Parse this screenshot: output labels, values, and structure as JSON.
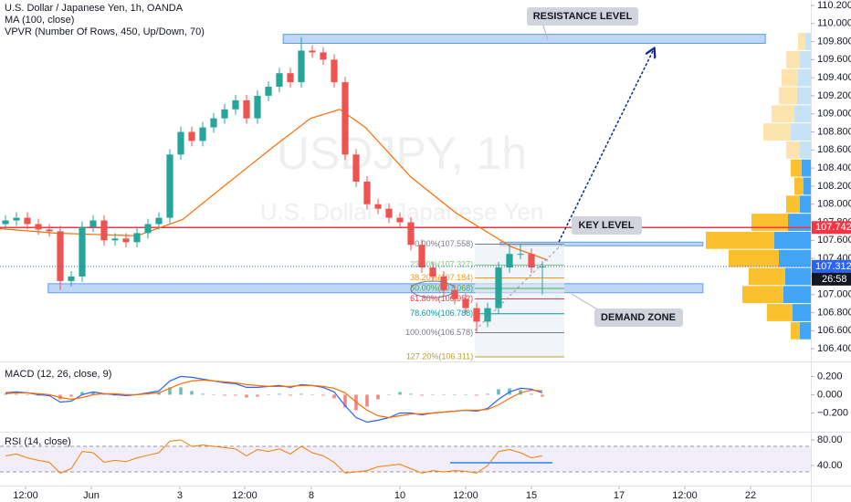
{
  "chart_data": [
    {
      "type": "candlestick",
      "title": "U.S. Dollar / Japanese Yen, 1h, OANDA",
      "watermark": {
        "symbol": "USDJPY, 1h",
        "description": "U.S. Dollar / Japanese Yen"
      },
      "annotations": [
        "RESISTANCE LEVEL",
        "KEY LEVEL",
        "DEMAND ZONE"
      ],
      "up_color": "#26a69a",
      "down_color": "#ef5350",
      "x": [
        1,
        3,
        5,
        7,
        9,
        11,
        13,
        15,
        17,
        19,
        21,
        23,
        25,
        27,
        29,
        31,
        33,
        35,
        37,
        39,
        41,
        43,
        45,
        47,
        49,
        51,
        53,
        55,
        57,
        59,
        61,
        63,
        65,
        67,
        69,
        71,
        73,
        75,
        77,
        79,
        81,
        83,
        85,
        87,
        89,
        91,
        93,
        95,
        97,
        99
      ],
      "open": [
        107.78,
        107.82,
        107.85,
        107.78,
        107.72,
        107.7,
        107.15,
        107.2,
        107.75,
        107.82,
        107.6,
        107.62,
        107.58,
        107.68,
        107.78,
        107.85,
        108.55,
        108.8,
        108.7,
        108.85,
        108.95,
        109.05,
        109.15,
        108.95,
        109.2,
        109.3,
        109.45,
        109.35,
        109.7,
        109.68,
        109.6,
        109.35,
        108.55,
        108.25,
        108.0,
        107.95,
        107.85,
        107.8,
        107.55,
        107.3,
        107.2,
        107.05,
        106.95,
        106.85,
        106.7,
        106.85,
        107.3,
        107.45,
        107.45,
        107.3
      ],
      "high": [
        107.88,
        107.91,
        107.91,
        107.84,
        107.78,
        107.76,
        107.26,
        107.81,
        107.88,
        107.88,
        107.68,
        107.68,
        107.74,
        107.84,
        107.91,
        108.61,
        108.86,
        108.86,
        108.91,
        109.01,
        109.11,
        109.21,
        109.21,
        109.26,
        109.36,
        109.51,
        109.51,
        109.85,
        109.76,
        109.74,
        109.66,
        109.41,
        108.61,
        108.31,
        108.06,
        108.01,
        107.91,
        107.86,
        107.61,
        107.36,
        107.26,
        107.11,
        107.01,
        106.91,
        106.91,
        107.36,
        107.55,
        107.56,
        107.51,
        107.37
      ],
      "low": [
        107.72,
        107.76,
        107.72,
        107.66,
        107.64,
        107.05,
        107.09,
        107.14,
        107.69,
        107.54,
        107.54,
        107.52,
        107.52,
        107.62,
        107.72,
        107.79,
        108.49,
        108.64,
        108.64,
        108.79,
        108.89,
        108.99,
        108.89,
        108.89,
        109.14,
        109.24,
        109.29,
        109.29,
        109.62,
        109.54,
        109.29,
        108.49,
        108.19,
        107.94,
        107.89,
        107.79,
        107.74,
        107.49,
        107.24,
        107.14,
        106.99,
        106.89,
        106.79,
        106.58,
        106.64,
        106.79,
        107.24,
        107.39,
        107.24,
        107.0
      ],
      "close": [
        107.82,
        107.85,
        107.78,
        107.72,
        107.7,
        107.15,
        107.2,
        107.75,
        107.82,
        107.6,
        107.62,
        107.58,
        107.68,
        107.78,
        107.85,
        108.55,
        108.8,
        108.7,
        108.85,
        108.95,
        109.05,
        109.15,
        108.95,
        109.2,
        109.3,
        109.45,
        109.35,
        109.7,
        109.68,
        109.6,
        109.35,
        108.55,
        108.25,
        108.0,
        107.95,
        107.85,
        107.8,
        107.55,
        107.3,
        107.2,
        107.05,
        106.95,
        106.85,
        106.7,
        106.85,
        107.3,
        107.45,
        107.45,
        107.3,
        107.31
      ],
      "xlim": [
        0,
        148
      ],
      "xticks": [
        {
          "value": 4.67,
          "label": "12:00"
        },
        {
          "value": 16.67,
          "label": "Jun"
        },
        {
          "value": 32.83,
          "label": "3"
        },
        {
          "value": 44.67,
          "label": "12:00"
        },
        {
          "value": 56.83,
          "label": "8"
        },
        {
          "value": 73,
          "label": "10"
        },
        {
          "value": 85,
          "label": "12:00"
        },
        {
          "value": 97,
          "label": "15"
        },
        {
          "value": 113,
          "label": "17"
        },
        {
          "value": 125,
          "label": "12:00"
        },
        {
          "value": 137,
          "label": "22"
        }
      ],
      "ylim": [
        106.27,
        110.26
      ],
      "yticks": [
        {
          "value": 106.4,
          "label": "106.400"
        },
        {
          "value": 106.6,
          "label": "106.600"
        },
        {
          "value": 106.8,
          "label": "106.800"
        },
        {
          "value": 107.0,
          "label": "107.000"
        },
        {
          "value": 107.2,
          "label": "107.200"
        },
        {
          "value": 107.4,
          "label": "107.400"
        },
        {
          "value": 107.6,
          "label": "107.600"
        },
        {
          "value": 107.8,
          "label": "107.800"
        },
        {
          "value": 108.0,
          "label": "108.000"
        },
        {
          "value": 108.2,
          "label": "108.200"
        },
        {
          "value": 108.4,
          "label": "108.400"
        },
        {
          "value": 108.6,
          "label": "108.600"
        },
        {
          "value": 108.8,
          "label": "108.800"
        },
        {
          "value": 109.0,
          "label": "109.000"
        },
        {
          "value": 109.2,
          "label": "109.200"
        },
        {
          "value": 109.4,
          "label": "109.400"
        },
        {
          "value": 109.6,
          "label": "109.600"
        },
        {
          "value": 109.8,
          "label": "109.800"
        },
        {
          "value": 110.0,
          "label": "110.000"
        },
        {
          "value": 110.2,
          "label": "110.200"
        }
      ],
      "ma": {
        "name": "MA (100, close)",
        "color": "#ff6d00",
        "x": [
          0,
          10,
          25,
          33.3,
          41.7,
          50,
          56.7,
          62,
          66.7,
          75,
          83.3,
          93.3,
          100
        ],
        "values": [
          107.73,
          107.68,
          107.65,
          107.83,
          108.24,
          108.64,
          108.95,
          109.05,
          108.85,
          108.3,
          107.9,
          107.53,
          107.38
        ]
      },
      "volume_profile": {
        "name": "VPVR (Number Of Rows, 450, Up/Down, 70)",
        "bins": [
          106.5,
          106.7,
          106.9,
          107.1,
          107.3,
          107.5,
          107.7,
          107.9,
          108.1,
          108.3,
          108.5,
          108.7,
          108.9,
          109.1,
          109.3,
          109.5,
          109.7,
          109.9
        ],
        "up": [
          12,
          20,
          30,
          28,
          35,
          40,
          25,
          12,
          8,
          10,
          12,
          22,
          18,
          15,
          14,
          12,
          6
        ],
        "down": [
          10,
          28,
          45,
          40,
          55,
          75,
          40,
          15,
          10,
          12,
          15,
          30,
          25,
          20,
          18,
          15,
          8
        ],
        "xlim": [
          0,
          120
        ],
        "value_area": [
          106.5,
          108.5
        ],
        "up_color": "#42a5f5",
        "down_color": "#fbc02d",
        "up_color_outside": "#c6e2f7",
        "down_color_outside": "#fde4ad"
      },
      "zones": [
        {
          "y": [
            109.78,
            109.88
          ],
          "x": [
            51.7,
            139.7
          ],
          "color": "#a9c8f3"
        },
        {
          "y": [
            107.02,
            107.12
          ],
          "x": [
            8.8,
            128.3
          ],
          "color": "#a9c8f3"
        },
        {
          "y": [
            107.54,
            107.58
          ],
          "x": [
            91.3,
            128.3
          ],
          "color": "#a9c8f3"
        }
      ],
      "key_level": {
        "value": 107.742,
        "color": "#f23645"
      },
      "fibonacci": {
        "x": [
          86.7,
          103
        ],
        "levels": [
          {
            "value": 107.558,
            "label": "0.00%(107.558)",
            "color": "#787b86"
          },
          {
            "value": 107.327,
            "label": "23.60%(107.327)",
            "color": "#81c784"
          },
          {
            "value": 107.184,
            "label": "38.20%(107.184)",
            "color": "#ff9800"
          },
          {
            "value": 107.068,
            "label": "50.00%(107.068)",
            "color": "#4caf50"
          },
          {
            "value": 106.952,
            "label": "61.80%(106.952)",
            "color": "#f23645"
          },
          {
            "value": 106.788,
            "label": "78.60%(106.788)",
            "color": "#0097a7"
          },
          {
            "value": 106.578,
            "label": "100.00%(106.578)",
            "color": "#787b86"
          },
          {
            "value": 106.311,
            "label": "127.20%(106.311)",
            "color": "#b8a02c"
          }
        ]
      },
      "price_tags": [
        {
          "value": 107.742,
          "label": "107.742",
          "color": "#f23645"
        },
        {
          "value": 107.312,
          "label": "107.312",
          "color": "#2962ff",
          "line": "dotted"
        }
      ],
      "countdown": {
        "label": "26:58",
        "color": "#131722"
      }
    },
    {
      "type": "macd",
      "title": "MACD (12, 26, close, 9)",
      "macd": {
        "color": "#2962ff",
        "values": [
          0.02,
          0.03,
          0.02,
          0.0,
          -0.01,
          -0.08,
          -0.07,
          0.0,
          0.03,
          0.01,
          0.0,
          -0.01,
          0.0,
          0.02,
          0.04,
          0.15,
          0.2,
          0.19,
          0.17,
          0.15,
          0.13,
          0.12,
          0.08,
          0.08,
          0.09,
          0.1,
          0.08,
          0.11,
          0.1,
          0.08,
          0.03,
          -0.12,
          -0.25,
          -0.3,
          -0.28,
          -0.25,
          -0.2,
          -0.2,
          -0.22,
          -0.2,
          -0.19,
          -0.18,
          -0.17,
          -0.18,
          -0.15,
          -0.05,
          0.03,
          0.07,
          0.06,
          0.02
        ]
      },
      "signal": {
        "color": "#ff6d00",
        "values": [
          0.01,
          0.02,
          0.02,
          0.01,
          0.0,
          -0.03,
          -0.05,
          -0.03,
          0.0,
          0.01,
          0.01,
          0.0,
          0.0,
          0.01,
          0.02,
          0.07,
          0.12,
          0.15,
          0.16,
          0.15,
          0.14,
          0.13,
          0.11,
          0.1,
          0.09,
          0.09,
          0.09,
          0.1,
          0.1,
          0.09,
          0.07,
          0.02,
          -0.08,
          -0.17,
          -0.23,
          -0.25,
          -0.23,
          -0.21,
          -0.21,
          -0.2,
          -0.19,
          -0.18,
          -0.17,
          -0.17,
          -0.16,
          -0.11,
          -0.04,
          0.02,
          0.05,
          0.04
        ]
      },
      "histogram": {
        "up_color": "#26a69a",
        "down_color": "#ef5350",
        "values": [
          0.01,
          0.01,
          0,
          -0.01,
          -0.01,
          -0.05,
          -0.02,
          0.03,
          0.03,
          0,
          -0.01,
          -0.01,
          0,
          0.01,
          0.02,
          0.08,
          0.08,
          0.04,
          0.01,
          0,
          -0.01,
          -0.01,
          -0.03,
          -0.02,
          0,
          0.01,
          -0.01,
          0.01,
          0,
          -0.01,
          -0.04,
          -0.14,
          -0.17,
          -0.13,
          -0.05,
          0,
          0.03,
          0.01,
          -0.01,
          0,
          0,
          0,
          0,
          -0.01,
          0.01,
          0.06,
          0.07,
          0.05,
          0.01,
          -0.02
        ]
      },
      "ylim": [
        -0.395,
        0.344
      ],
      "yticks": [
        {
          "value": -0.2,
          "label": "−0.200"
        },
        {
          "value": 0,
          "label": "0.000"
        },
        {
          "value": 0.2,
          "label": "0.200"
        }
      ]
    },
    {
      "type": "line",
      "title": "RSI (14, close)",
      "color": "#f57c00",
      "values": [
        55,
        58,
        52,
        48,
        45,
        28,
        35,
        62,
        60,
        45,
        48,
        46,
        52,
        56,
        60,
        78,
        80,
        70,
        72,
        70,
        68,
        66,
        55,
        65,
        62,
        66,
        58,
        70,
        60,
        55,
        45,
        28,
        30,
        32,
        38,
        40,
        42,
        35,
        28,
        32,
        30,
        32,
        31,
        28,
        40,
        62,
        65,
        60,
        52,
        55
      ],
      "band": [
        30,
        70
      ],
      "band_color": "#7e57c2",
      "ylim": [
        10,
        90
      ],
      "yticks": [
        {
          "value": 40,
          "label": "40.00"
        },
        {
          "value": 80,
          "label": "80.00"
        }
      ]
    }
  ]
}
